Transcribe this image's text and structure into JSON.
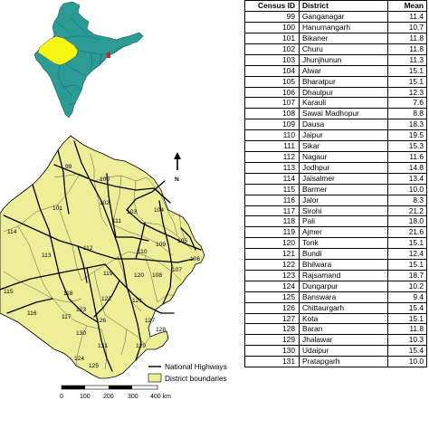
{
  "table": {
    "headers": [
      "Census ID",
      "District",
      "Mean"
    ],
    "rows": [
      [
        "99",
        "Ganganagar",
        "11.4"
      ],
      [
        "100",
        "Hanumangarh",
        "10.7"
      ],
      [
        "101",
        "Bikaner",
        "11.8"
      ],
      [
        "102",
        "Churu",
        "11.8"
      ],
      [
        "103",
        "Jhunjhunun",
        "11.3"
      ],
      [
        "104",
        "Alwar",
        "15.1"
      ],
      [
        "105",
        "Bharatpur",
        "15.1"
      ],
      [
        "106",
        "Dhaulpur",
        "12.3"
      ],
      [
        "107",
        "Karauli",
        "7.6"
      ],
      [
        "108",
        "Sawai Madhopur",
        "8.8"
      ],
      [
        "109",
        "Dausa",
        "18.3"
      ],
      [
        "110",
        "Jaipur",
        "19.5"
      ],
      [
        "111",
        "Sikar",
        "15.3"
      ],
      [
        "112",
        "Nagaur",
        "11.6"
      ],
      [
        "113",
        "Jodhpur",
        "14.8"
      ],
      [
        "114",
        "Jaisalmer",
        "13.4"
      ],
      [
        "115",
        "Barmer",
        "10.0"
      ],
      [
        "116",
        "Jalor",
        "8.3"
      ],
      [
        "117",
        "Sirohi",
        "21.2"
      ],
      [
        "118",
        "Pali",
        "18.0"
      ],
      [
        "119",
        "Ajmer",
        "21.6"
      ],
      [
        "120",
        "Tonk",
        "15.1"
      ],
      [
        "121",
        "Bundi",
        "12.4"
      ],
      [
        "122",
        "Bhilwara",
        "15.1"
      ],
      [
        "123",
        "Rajsamand",
        "18.7"
      ],
      [
        "124",
        "Dungarpur",
        "10.2"
      ],
      [
        "125",
        "Banswara",
        "9.4"
      ],
      [
        "126",
        "Chittaurgarh",
        "15.4"
      ],
      [
        "127",
        "Kota",
        "15.1"
      ],
      [
        "128",
        "Baran",
        "11.8"
      ],
      [
        "129",
        "Jhalawar",
        "10.3"
      ],
      [
        "130",
        "Udaipur",
        "15.4"
      ],
      [
        "131",
        "Pratapgarh",
        "10.0"
      ]
    ]
  },
  "map": {
    "district_labels": [
      {
        "id": "99"
      },
      {
        "id": "100"
      },
      {
        "id": "101"
      },
      {
        "id": "102"
      },
      {
        "id": "103"
      },
      {
        "id": "104"
      },
      {
        "id": "105"
      },
      {
        "id": "106"
      },
      {
        "id": "107"
      },
      {
        "id": "108"
      },
      {
        "id": "109"
      },
      {
        "id": "110"
      },
      {
        "id": "111"
      },
      {
        "id": "112"
      },
      {
        "id": "113"
      },
      {
        "id": "114"
      },
      {
        "id": "115"
      },
      {
        "id": "116"
      },
      {
        "id": "117"
      },
      {
        "id": "118"
      },
      {
        "id": "119"
      },
      {
        "id": "120"
      },
      {
        "id": "121"
      },
      {
        "id": "122"
      },
      {
        "id": "123"
      },
      {
        "id": "124"
      },
      {
        "id": "125"
      },
      {
        "id": "126"
      },
      {
        "id": "127"
      },
      {
        "id": "128"
      },
      {
        "id": "129"
      },
      {
        "id": "130"
      },
      {
        "id": "131"
      }
    ],
    "north_label": "N",
    "legend": {
      "highways_label": "National Highways",
      "districts_label": "District boundaries"
    },
    "scale_labels": [
      "0",
      "100",
      "200",
      "300",
      "400 km"
    ],
    "colors": {
      "district_fill": "#eeee99",
      "india_fill": "#2b9c95",
      "rajasthan_highlight": "#f6f614",
      "highway": "#000000"
    }
  }
}
